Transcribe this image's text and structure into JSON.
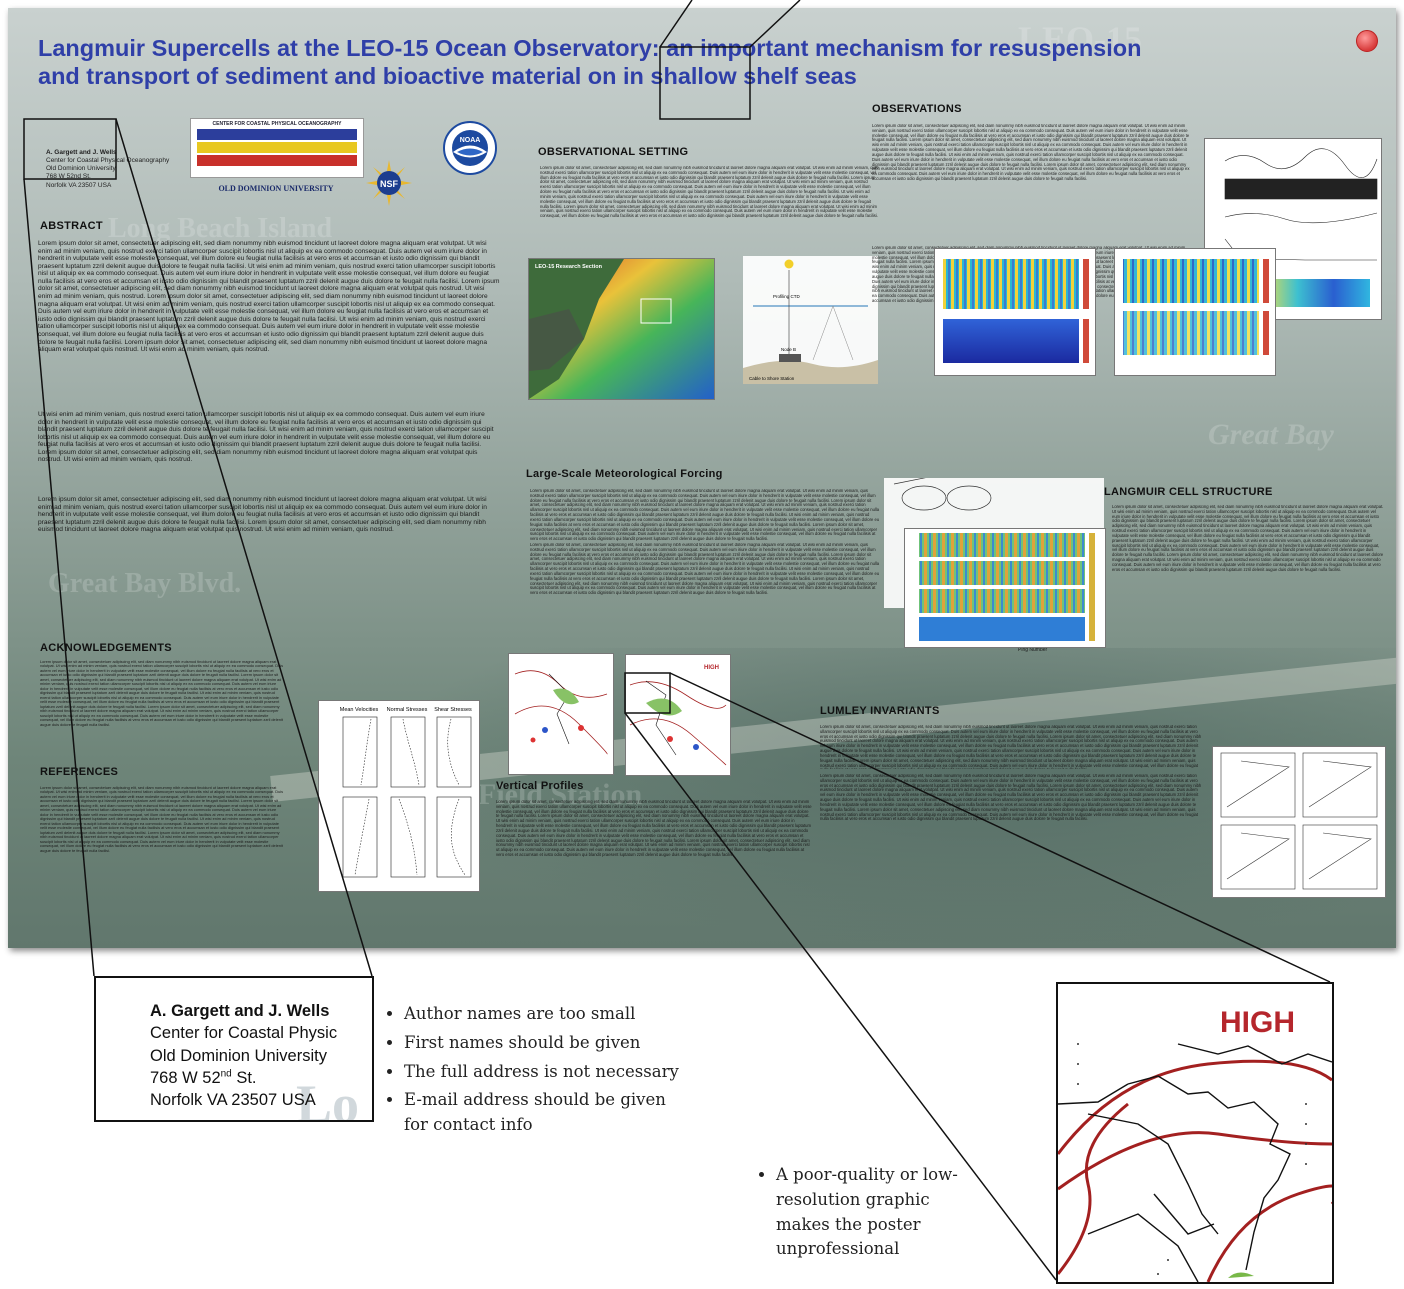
{
  "poster": {
    "title_line1": "Langmuir Supercells at the LEO-15 Ocean Observatory: an important mechanism for resuspension",
    "title_line2": "and transport of sediment and bioactive material on in shallow shelf seas",
    "ghost_texts": [
      "LEO-15",
      "Long Beach Island",
      "Great Bay Blvd.",
      "Field Station",
      "Great Bay"
    ],
    "authors": {
      "name": "A. Gargett and J. Wells",
      "line1": "Center for Coastal Physical Oceanography",
      "line2": "Old Dominion University",
      "line3": "768 W 52nd St.",
      "line4": "Norfolk VA 23507 USA"
    },
    "logos": {
      "ccpo_header": "CENTER FOR COASTAL PHYSICAL OCEANOGRAPHY",
      "odu": "OLD DOMINION UNIVERSITY",
      "nsf": "NSF",
      "noaa": "NOAA"
    },
    "headings": {
      "abstract": "ABSTRACT",
      "acknowledgements": "ACKNOWLEDGEMENTS",
      "references": "REFERENCES",
      "observational_setting": "OBSERVATIONAL SETTING",
      "meteorological": "Large-Scale Meteorological Forcing",
      "vertical_profiles": "Vertical Profiles",
      "observations": "OBSERVATIONS",
      "langmuir": "LANGMUIR CELL STRUCTURE",
      "lumley": "LUMLEY INVARIANTS"
    },
    "abstract_para1": "Lorem ipsum dolor sit amet, consectetuer adipiscing elit, sed diam nonummy nibh euismod tincidunt ut laoreet dolore magna aliquam erat volutpat. Ut wisi enim ad minim veniam, quis nostrud exerci tation ullamcorper suscipit lobortis nisl ut aliquip ex ea commodo consequat. Duis autem vel eum iriure dolor in hendrerit in vulputate velit esse molestie consequat, vel illum dolore eu feugiat nulla facilisis at vero eros et accumsan et iusto odio dignissim qui blandit praesent luptatum zzril delenit augue duis dolore te feugait nulla facilisi. Ut wisi enim ad minim veniam, quis nostrud exerci tation ullamcorper suscipit lobortis nisl ut aliquip ex ea commodo consequat. Duis autem vel eum iriure dolor in hendrerit in vulputate velit esse molestie consequat, vel illum dolore eu feugiat nulla facilisis at vero eros et accumsan et iusto odio dignissim qui blandit praesent luptatum zzril delenit augue duis dolore te feugait nulla facilisi. Lorem ipsum dolor sit amet, consectetuer adipiscing elit, sed diam nonummy nibh euismod tincidunt ut laoreet dolore magna aliquam erat volutpat quis nostrud. Ut wisi enim ad minim veniam, quis nostrud. Lorem ipsum dolor sit amet, consectetuer adipiscing elit, sed diam nonummy nibh euismod tincidunt ut laoreet dolore magna aliquam erat volutpat. Ut wisi enim ad minim veniam, quis nostrud exerci tation ullamcorper suscipit lobortis nisl ut aliquip ex ea commodo consequat. Duis autem vel eum iriure dolor in hendrerit in vulputate velit esse molestie consequat, vel illum dolore eu feugiat nulla facilisis at vero eros et accumsan et iusto odio dignissim qui blandit praesent luptatum zzril delenit augue duis dolore te feugait nulla facilisi. Ut wisi enim ad minim veniam, quis nostrud exerci tation ullamcorper suscipit lobortis nisl ut aliquip ex ea commodo consequat. Duis autem vel eum iriure dolor in hendrerit in vulputate velit esse molestie consequat, vel illum dolore eu feugiat nulla facilisis at vero eros et accumsan et iusto odio dignissim qui blandit praesent luptatum zzril delenit augue duis dolore te feugait nulla facilisi. Lorem ipsum dolor sit amet, consectetuer adipiscing elit, sed diam nonummy nibh euismod tincidunt ut laoreet dolore magna aliquam erat volutpat quis nostrud. Ut wisi enim ad minim veniam, quis nostrud.",
    "abstract_para2": "Ut wisi enim ad minim veniam, quis nostrud exerci tation ullamcorper suscipit lobortis nisl ut aliquip ex ea commodo consequat. Duis autem vel eum iriure dolor in hendrerit in vulputate velit esse molestie consequat, vel illum dolore eu feugiat nulla facilisis at vero eros et accumsan et iusto odio dignissim qui blandit praesent luptatum zzril delenit augue duis dolore te feugait nulla facilisi. Ut wisi enim ad minim veniam, quis nostrud exerci tation ullamcorper suscipit lobortis nisl ut aliquip ex ea commodo consequat. Duis autem vel eum iriure dolor in hendrerit in vulputate velit esse molestie consequat, vel illum dolore eu feugiat nulla facilisis at vero eros et accumsan et iusto odio dignissim qui blandit praesent luptatum zzril delenit augue duis dolore te feugait nulla facilisi. Lorem ipsum dolor sit amet, consectetuer adipiscing elit, sed diam nonummy nibh euismod tincidunt ut laoreet dolore magna aliquam erat volutpat quis nostrud. Ut wisi enim ad minim veniam, quis nostrud.",
    "abstract_para3": "Lorem ipsum dolor sit amet, consectetuer adipiscing elit, sed diam nonummy nibh euismod tincidunt ut laoreet dolore magna aliquam erat volutpat. Ut wisi enim ad minim veniam, quis nostrud exerci tation ullamcorper suscipit lobortis nisl ut aliquip ex ea commodo consequat. Duis autem vel eum iriure dolor in hendrerit in vulputate velit esse molestie consequat, vel illum dolore eu feugiat nulla facilisis at vero eros et accumsan et iusto odio dignissim qui blandit praesent luptatum zzril delenit augue duis dolore te feugait nulla facilisi. Lorem ipsum dolor sit amet, consectetuer adipiscing elit, sed diam nonummy nibh euismod tincidunt ut laoreet dolore magna aliquam erat volutpat quis nostrud. Ut wisi enim ad minim veniam, quis nostrud.",
    "small_lorem": "Lorem ipsum dolor sit amet, consectetuer adipiscing elit, sed diam nonummy nibh euismod tincidunt ut laoreet dolore magna aliquam erat volutpat. Ut wisi enim ad minim veniam, quis nostrud exerci tation ullamcorper suscipit lobortis nisl ut aliquip ex ea commodo consequat. Duis autem vel eum iriure dolor in hendrerit in vulputate velit esse molestie consequat, vel illum dolore eu feugiat nulla facilisis at vero eros et accumsan et iusto odio dignissim qui blandit praesent luptatum zzril delenit augue duis dolore te feugait nulla facilisi. Lorem ipsum dolor sit amet, consectetuer adipiscing elit, sed diam nonummy nibh euismod tincidunt ut laoreet dolore magna aliquam erat volutpat. Ut wisi enim ad minim veniam, quis nostrud exerci tation ullamcorper suscipit lobortis nisl ut aliquip ex ea commodo consequat. Duis autem vel eum iriure dolor in hendrerit in vulputate velit esse molestie consequat, vel illum dolore eu feugiat nulla facilisis at vero eros et accumsan et iusto odio dignissim qui blandit praesent luptatum zzril delenit augue duis dolore te feugait nulla facilisi. Ut wisi enim ad minim veniam, quis nostrud exerci tation ullamcorper suscipit lobortis nisl ut aliquip ex ea commodo consequat. Duis autem vel eum iriure dolor in hendrerit in vulputate velit esse molestie consequat, vel illum dolore eu feugiat nulla facilisis at vero eros et accumsan et iusto odio dignissim qui blandit praesent luptatum zzril delenit augue duis dolore te feugait nulla facilisi. Lorem ipsum dolor sit amet, consectetuer adipiscing elit, sed diam nonummy nibh euismod tincidunt ut laoreet dolore magna aliquam erat volutpat. Ut wisi enim ad minim veniam, quis nostrud exerci tation ullamcorper suscipit lobortis nisl ut aliquip ex ea commodo consequat. Duis autem vel eum iriure dolor in hendrerit in vulputate velit esse molestie consequat, vel illum dolore eu feugiat nulla facilisis at vero eros et accumsan et iusto odio dignissim qui blandit praesent luptatum zzril delenit augue duis dolore te feugait nulla facilisi.",
    "fig_labels": {
      "profiles_mean": "Mean Velocities",
      "profiles_normal": "Normal Stresses",
      "profiles_shear": "Shear Stresses",
      "ping_number": "Ping Number",
      "leo_map_title": "LEO-15 Research Section",
      "weather_high": "HIGH",
      "cable": "Cable to Shore Station",
      "profiling": "Profiling CTD",
      "node": "Node B"
    }
  },
  "callout": {
    "name": "A. Gargett and J. Wells",
    "line1": "Center for Coastal Physic",
    "line2": "Old Dominion University",
    "line3_pre": "768 W 52",
    "line3_sup": "nd",
    "line3_post": " St.",
    "line4": "Norfolk VA 23507 USA"
  },
  "critique": {
    "author_points": [
      "Author names are too small",
      "First names should be given",
      "The full address is not necessary",
      "E-mail address should be given for contact info"
    ],
    "graphic_point": "A poor-quality or low-resolution graphic makes the poster unprofessional"
  },
  "zoom_weather": {
    "label": "HIGH"
  },
  "colors": {
    "title_blue": "#2f3fa8",
    "high_red": "#b5262c",
    "isobar_red": "#a32020"
  }
}
